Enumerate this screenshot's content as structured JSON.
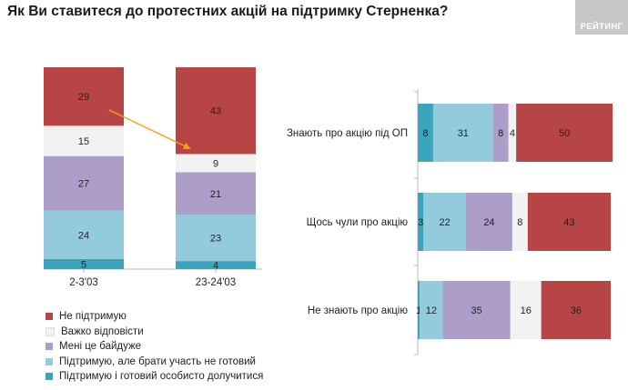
{
  "title": "Як Ви ставитеся до протестних акцій на підтримку Стерненка?",
  "logo_text": "РЕЙТИНГ",
  "colors": {
    "Не підтримую": "#b84545",
    "Важко відповісти": "#f2f2f2",
    "Мені це байдуже": "#ad9dc9",
    "Підтримую, але брати участь не готовий": "#94cbdc",
    "Підтримую і готовий особисто долучитися": "#3ba5bd",
    "arrow": "#f3a11b"
  },
  "legend": [
    "Не підтримую",
    "Важко відповісти",
    "Мені це байдуже",
    "Підтримую, але брати участь не готовий",
    "Підтримую і готовий особисто долучитися"
  ],
  "chart_data": [
    {
      "type": "bar",
      "stacked": true,
      "orientation": "vertical",
      "categories": [
        "2-3'03",
        "23-24'03"
      ],
      "series": [
        {
          "name": "Підтримую і готовий особисто долучитися",
          "values": [
            5,
            4
          ]
        },
        {
          "name": "Підтримую, але брати участь не готовий",
          "values": [
            24,
            23
          ]
        },
        {
          "name": "Мені це байдуже",
          "values": [
            27,
            21
          ]
        },
        {
          "name": "Важко відповісти",
          "values": [
            15,
            9
          ]
        },
        {
          "name": "Не підтримую",
          "values": [
            29,
            43
          ]
        }
      ],
      "ylim": [
        0,
        100
      ],
      "grid": false
    },
    {
      "type": "bar",
      "stacked": true,
      "orientation": "horizontal",
      "categories": [
        "Знають про акцію під ОП",
        "Щось чули про акцію",
        "Не знають про акцію"
      ],
      "series": [
        {
          "name": "Підтримую і готовий особисто долучитися",
          "values": [
            8,
            3,
            1
          ]
        },
        {
          "name": "Підтримую, але брати участь не готовий",
          "values": [
            31,
            22,
            12
          ]
        },
        {
          "name": "Мені це байдуже",
          "values": [
            8,
            24,
            35
          ]
        },
        {
          "name": "Важко відповісти",
          "values": [
            4,
            8,
            16
          ]
        },
        {
          "name": "Не підтримую",
          "values": [
            50,
            43,
            36
          ]
        }
      ],
      "xlim": [
        0,
        100
      ],
      "grid": false
    }
  ]
}
